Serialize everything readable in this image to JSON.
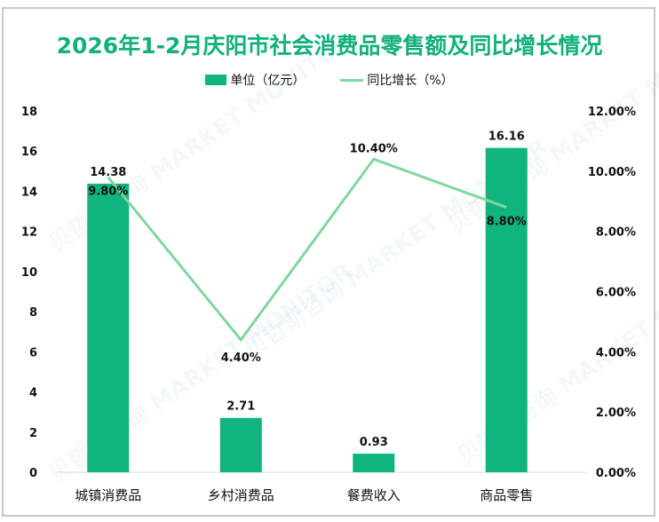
{
  "title": "2026年1-2月庆阳市社会消费品零售额及同比增长情况",
  "legend": {
    "bar_label": "单位（亿元）",
    "line_label": "同比增长（%）"
  },
  "colors": {
    "title": "#12b07d",
    "bar": "#10b47f",
    "line": "#7fd69e",
    "axis": "#d9d9d9",
    "text": "#111111"
  },
  "watermark": "贝哲斯咨询 MARKET MONITOR",
  "chart_data": {
    "type": "bar",
    "title": "2026年1-2月庆阳市社会消费品零售额及同比增长情况",
    "categories": [
      "城镇消费品",
      "乡村消费品",
      "餐费收入",
      "商品零售"
    ],
    "series": [
      {
        "name": "单位（亿元）",
        "type": "bar",
        "axis": "left",
        "values": [
          14.38,
          2.71,
          0.93,
          16.16
        ],
        "labels": [
          "14.38",
          "2.71",
          "0.93",
          "16.16"
        ]
      },
      {
        "name": "同比增长（%）",
        "type": "line",
        "axis": "right",
        "values": [
          9.8,
          4.4,
          10.4,
          8.8
        ],
        "labels": [
          "9.80%",
          "4.40%",
          "10.40%",
          "8.80%"
        ]
      }
    ],
    "y_left": {
      "ylim": [
        0,
        18
      ],
      "ticks": [
        "0",
        "2",
        "4",
        "6",
        "8",
        "10",
        "12",
        "14",
        "16",
        "18"
      ]
    },
    "y_right": {
      "ylim": [
        0,
        12
      ],
      "ticks": [
        "0.00%",
        "2.00%",
        "4.00%",
        "6.00%",
        "8.00%",
        "10.00%",
        "12.00%"
      ]
    },
    "grid": false,
    "legend_position": "top"
  }
}
